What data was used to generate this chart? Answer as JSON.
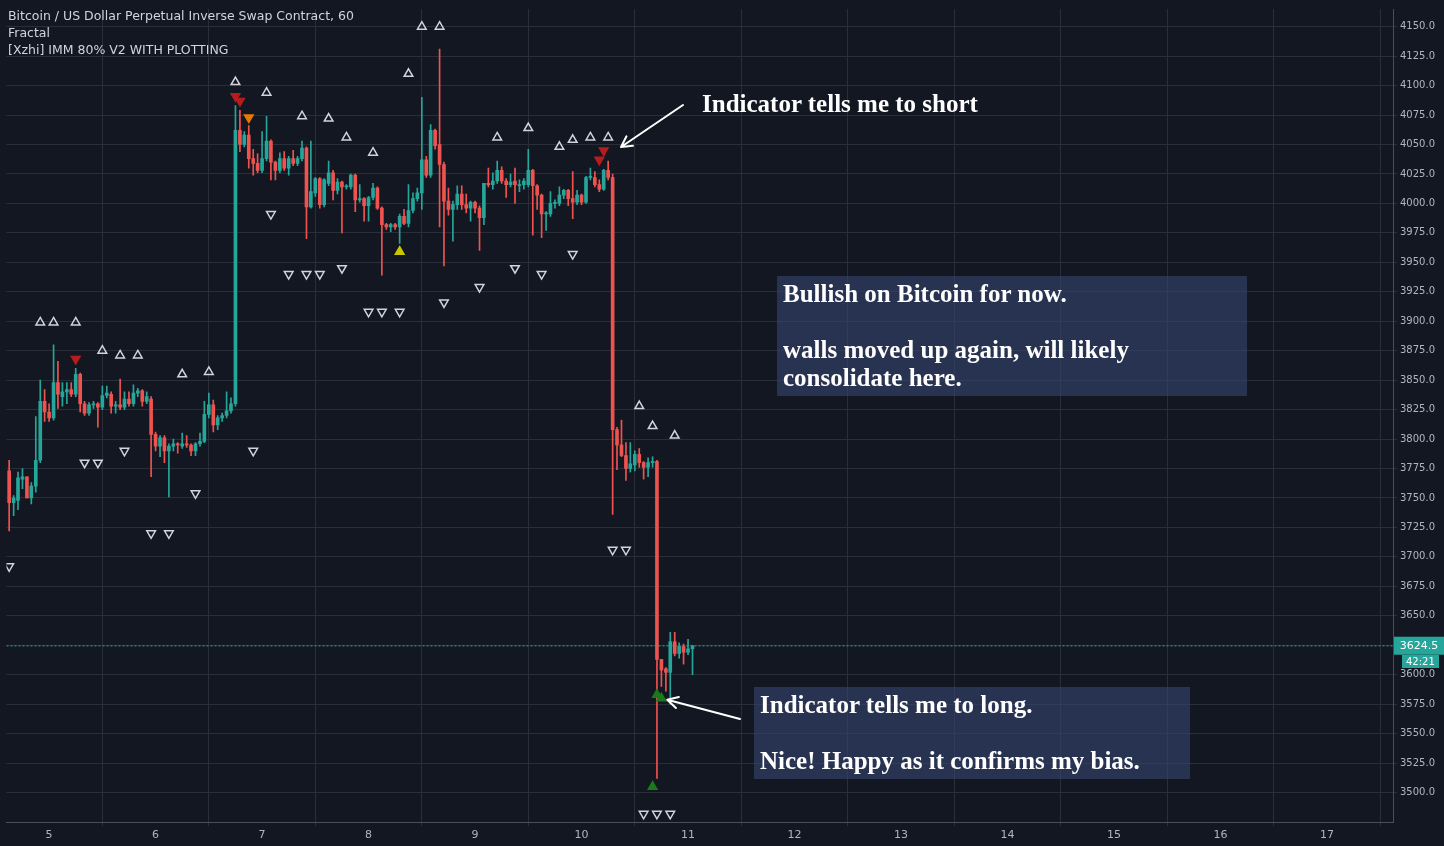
{
  "chart_data": {
    "type": "candlestick",
    "title": "Bitcoin / US Dollar Perpetual Inverse Swap Contract, 60",
    "annotations": [
      "Fractal",
      "[Xzhi] IMM 80% V2 WITH PLOTTING",
      "Indicator tells me to short",
      "Bullish on Bitcoin for now.",
      "walls moved up again, will likely consolidate here.",
      {
        "text": "Indicator tells me to long.",
        "x": 10.75,
        "y": 3580
      },
      "Nice! Happy as it confirms my bias.",
      "42:21"
    ],
    "x": [
      4.625,
      4.667,
      4.708,
      4.75,
      4.792,
      4.833,
      4.875,
      4.917,
      4.958,
      5,
      5.042,
      5.083,
      5.125,
      5.167,
      5.208,
      5.25,
      5.292,
      5.333,
      5.375,
      5.417,
      5.458,
      5.5,
      5.542,
      5.583,
      5.625,
      5.667,
      5.708,
      5.75,
      5.792,
      5.833,
      5.875,
      5.917,
      5.958,
      6,
      6.042,
      6.083,
      6.125,
      6.167,
      6.208,
      6.25,
      6.292,
      6.333,
      6.375,
      6.417,
      6.458,
      6.5,
      6.542,
      6.583,
      6.625,
      6.667,
      6.708,
      6.75,
      6.792,
      6.833,
      6.875,
      6.917,
      6.958,
      7,
      7.042,
      7.083,
      7.125,
      7.167,
      7.208,
      7.25,
      7.292,
      7.333,
      7.375,
      7.417,
      7.458,
      7.5,
      7.542,
      7.583,
      7.625,
      7.667,
      7.708,
      7.75,
      7.792,
      7.833,
      7.875,
      7.917,
      7.958,
      8,
      8.042,
      8.083,
      8.125,
      8.167,
      8.208,
      8.25,
      8.292,
      8.333,
      8.375,
      8.417,
      8.458,
      8.5,
      8.542,
      8.583,
      8.625,
      8.667,
      8.708,
      8.75,
      8.792,
      8.833,
      8.875,
      8.917,
      8.958,
      9,
      9.042,
      9.083,
      9.125,
      9.167,
      9.208,
      9.25,
      9.292,
      9.333,
      9.375,
      9.417,
      9.458,
      9.5,
      9.542,
      9.583,
      9.625,
      9.667,
      9.708,
      9.75,
      9.792,
      9.833,
      9.875,
      9.917,
      9.958,
      10,
      10.042,
      10.083,
      10.125,
      10.167,
      10.208,
      10.25,
      10.292,
      10.333,
      10.375,
      10.417,
      10.458,
      10.5,
      10.542,
      10.583,
      10.625,
      10.667,
      10.708,
      10.75,
      10.792,
      10.833,
      10.875,
      10.917,
      10.958,
      11,
      11.042
    ],
    "ohlc": [
      [
        3773,
        3782,
        3722,
        3746
      ],
      [
        3746,
        3752,
        3735,
        3750
      ],
      [
        3748,
        3772,
        3740,
        3767
      ],
      [
        3766,
        3775,
        3758,
        3768
      ],
      [
        3768,
        3768,
        3750,
        3750
      ],
      [
        3750,
        3763,
        3745,
        3760
      ],
      [
        3760,
        3819,
        3755,
        3782
      ],
      [
        3782,
        3850,
        3780,
        3832
      ],
      [
        3832,
        3842,
        3815,
        3823
      ],
      [
        3823,
        3830,
        3815,
        3818
      ],
      [
        3818,
        3880,
        3816,
        3848
      ],
      [
        3848,
        3866,
        3826,
        3838
      ],
      [
        3836,
        3848,
        3828,
        3840
      ],
      [
        3840,
        3848,
        3830,
        3842
      ],
      [
        3842,
        3848,
        3836,
        3838
      ],
      [
        3838,
        3860,
        3836,
        3855
      ],
      [
        3855,
        3856,
        3823,
        3830
      ],
      [
        3830,
        3832,
        3820,
        3822
      ],
      [
        3822,
        3831,
        3820,
        3829
      ],
      [
        3829,
        3832,
        3826,
        3830
      ],
      [
        3830,
        3831,
        3810,
        3827
      ],
      [
        3827,
        3845,
        3825,
        3837
      ],
      [
        3837,
        3845,
        3835,
        3839
      ],
      [
        3838,
        3840,
        3822,
        3828
      ],
      [
        3828,
        3832,
        3822,
        3829
      ],
      [
        3829,
        3851,
        3825,
        3827
      ],
      [
        3827,
        3840,
        3825,
        3834
      ],
      [
        3834,
        3840,
        3828,
        3830
      ],
      [
        3830,
        3846,
        3828,
        3839
      ],
      [
        3839,
        3843,
        3836,
        3841
      ],
      [
        3841,
        3842,
        3828,
        3832
      ],
      [
        3832,
        3840,
        3830,
        3836
      ],
      [
        3834,
        3836,
        3768,
        3804
      ],
      [
        3804,
        3806,
        3790,
        3794
      ],
      [
        3794,
        3803,
        3785,
        3801
      ],
      [
        3801,
        3803,
        3780,
        3790
      ],
      [
        3790,
        3796,
        3751,
        3794
      ],
      [
        3794,
        3800,
        3790,
        3796
      ],
      [
        3796,
        3797,
        3788,
        3795
      ],
      [
        3794,
        3805,
        3792,
        3796
      ],
      [
        3796,
        3803,
        3793,
        3795
      ],
      [
        3795,
        3796,
        3786,
        3790
      ],
      [
        3790,
        3797,
        3786,
        3796
      ],
      [
        3796,
        3805,
        3794,
        3798
      ],
      [
        3798,
        3832,
        3797,
        3821
      ],
      [
        3821,
        3839,
        3818,
        3829
      ],
      [
        3829,
        3833,
        3806,
        3812
      ],
      [
        3812,
        3820,
        3808,
        3818
      ],
      [
        3818,
        3822,
        3815,
        3820
      ],
      [
        3820,
        3840,
        3818,
        3824
      ],
      [
        3824,
        3835,
        3822,
        3830
      ],
      [
        3830,
        4083,
        3828,
        4062
      ],
      [
        4062,
        4079,
        4044,
        4050
      ],
      [
        4050,
        4061,
        4048,
        4058
      ],
      [
        4058,
        4066,
        4030,
        4038
      ],
      [
        4038,
        4046,
        4024,
        4034
      ],
      [
        4034,
        4042,
        4026,
        4028
      ],
      [
        4028,
        4061,
        4026,
        4038
      ],
      [
        4038,
        4074,
        4036,
        4053
      ],
      [
        4053,
        4054,
        4020,
        4035
      ],
      [
        4035,
        4036,
        4020,
        4028
      ],
      [
        4028,
        4043,
        4026,
        4038
      ],
      [
        4038,
        4044,
        4028,
        4030
      ],
      [
        4030,
        4040,
        4024,
        4038
      ],
      [
        4038,
        4045,
        4032,
        4034
      ],
      [
        4034,
        4040,
        4032,
        4038
      ],
      [
        4038,
        4053,
        4036,
        4047
      ],
      [
        4047,
        4048,
        3970,
        3997
      ],
      [
        3997,
        4053,
        3996,
        4010
      ],
      [
        4009,
        4022,
        4006,
        4021
      ],
      [
        4021,
        4022,
        3996,
        3999
      ],
      [
        3999,
        4021,
        3997,
        4020
      ],
      [
        4017,
        4036,
        4015,
        4026
      ],
      [
        4026,
        4028,
        4003,
        4011
      ],
      [
        4011,
        4021,
        4008,
        4018
      ],
      [
        4018,
        4019,
        3975,
        4014
      ],
      [
        4014,
        4016,
        4012,
        4015
      ],
      [
        4014,
        4025,
        4012,
        4024
      ],
      [
        4024,
        4025,
        3993,
        4003
      ],
      [
        4003,
        4016,
        4001,
        4004
      ],
      [
        4004,
        4005,
        3985,
        3998
      ],
      [
        3998,
        4006,
        3985,
        4005
      ],
      [
        4005,
        4017,
        4003,
        4013
      ],
      [
        4013,
        4014,
        3995,
        3996
      ],
      [
        3996,
        3997,
        3939,
        3982
      ],
      [
        3982,
        3983,
        3978,
        3980
      ],
      [
        3980,
        3983,
        3976,
        3982
      ],
      [
        3982,
        3983,
        3978,
        3980
      ],
      [
        3980,
        3991,
        3966,
        3989
      ],
      [
        3989,
        3995,
        3982,
        3983
      ],
      [
        3983,
        4016,
        3980,
        3994
      ],
      [
        3994,
        4009,
        3992,
        4004
      ],
      [
        4004,
        4013,
        4002,
        4009
      ],
      [
        4009,
        4090,
        3995,
        4037
      ],
      [
        4037,
        4040,
        4022,
        4024
      ],
      [
        4024,
        4067,
        4022,
        4062
      ],
      [
        4062,
        4063,
        4046,
        4049
      ],
      [
        4050,
        4131,
        3980,
        4033
      ],
      [
        4033,
        4035,
        3947,
        4002
      ],
      [
        4002,
        4013,
        3990,
        3995
      ],
      [
        3995,
        4002,
        3968,
        3999
      ],
      [
        3999,
        4015,
        3995,
        4008
      ],
      [
        4008,
        4015,
        3995,
        3999
      ],
      [
        3999,
        4008,
        3992,
        3996
      ],
      [
        3996,
        4002,
        3985,
        4001
      ],
      [
        4001,
        4002,
        3992,
        3996
      ],
      [
        3996,
        3998,
        3960,
        3988
      ],
      [
        3988,
        4017,
        3982,
        4017
      ],
      [
        4017,
        4030,
        4014,
        4016
      ],
      [
        4016,
        4026,
        4012,
        4019
      ],
      [
        4019,
        4036,
        4017,
        4028
      ],
      [
        4028,
        4031,
        4017,
        4019
      ],
      [
        4019,
        4021,
        4005,
        4016
      ],
      [
        4016,
        4025,
        4014,
        4018
      ],
      [
        4019,
        4030,
        4000,
        4016
      ],
      [
        4015,
        4020,
        4010,
        4016
      ],
      [
        4016,
        4021,
        4012,
        4019
      ],
      [
        4016,
        4046,
        4014,
        4028
      ],
      [
        4028,
        4029,
        3973,
        4015
      ],
      [
        4015,
        4016,
        3995,
        4007
      ],
      [
        4007,
        4008,
        3971,
        3991
      ],
      [
        3991,
        3993,
        3977,
        3992
      ],
      [
        3991,
        4010,
        3989,
        4000
      ],
      [
        4000,
        4003,
        3996,
        4001
      ],
      [
        4000,
        4014,
        3998,
        4007
      ],
      [
        4007,
        4012,
        4004,
        4011
      ],
      [
        4011,
        4012,
        3998,
        4004
      ],
      [
        4004,
        4027,
        3987,
        4001
      ],
      [
        4001,
        4011,
        3999,
        4007
      ],
      [
        4007,
        4008,
        3999,
        4001
      ],
      [
        4001,
        4023,
        4000,
        4022
      ],
      [
        4022,
        4030,
        4020,
        4023
      ],
      [
        4022,
        4027,
        4014,
        4016
      ],
      [
        4016,
        4020,
        4010,
        4012
      ],
      [
        4012,
        4029,
        4011,
        4028
      ],
      [
        4028,
        4036,
        4020,
        4022
      ],
      [
        4022,
        4025,
        3736,
        3808
      ],
      [
        3808,
        3810,
        3774,
        3795
      ],
      [
        3795,
        3816,
        3785,
        3786
      ],
      [
        3786,
        3797,
        3765,
        3775
      ],
      [
        3775,
        3797,
        3772,
        3779
      ],
      [
        3778,
        3790,
        3773,
        3787
      ],
      [
        3787,
        3792,
        3776,
        3780
      ],
      [
        3780,
        3781,
        3766,
        3776
      ],
      [
        3776,
        3784,
        3768,
        3780
      ],
      [
        3780,
        3785,
        3776,
        3781
      ],
      [
        3781,
        3782,
        3512,
        3613
      ],
      [
        3613,
        3613,
        3590,
        3604
      ],
      [
        3605,
        3606,
        3586,
        3602
      ],
      [
        3602,
        3636,
        3575,
        3628
      ],
      [
        3628,
        3636,
        3616,
        3618
      ],
      [
        3618,
        3627,
        3614,
        3624
      ],
      [
        3624,
        3626,
        3609,
        3619
      ],
      [
        3619,
        3630,
        3617,
        3622
      ],
      [
        3622,
        3625,
        3600,
        3624.5
      ]
    ],
    "colors": [
      "#ef5350",
      "#26a69a",
      "#26a69a",
      "#26a69a",
      "#ef5350",
      "#26a69a",
      "#26a69a",
      "#26a69a",
      "#ef5350",
      "#ef5350",
      "#26a69a",
      "#ef5350",
      "#26a69a",
      "#26a69a",
      "#ef5350",
      "#26a69a",
      "#ef5350",
      "#ef5350",
      "#26a69a",
      "#26a69a",
      "#ef5350",
      "#26a69a",
      "#26a69a",
      "#ef5350",
      "#26a69a",
      "#ef5350",
      "#26a69a",
      "#ef5350",
      "#26a69a",
      "#26a69a",
      "#ef5350",
      "#26a69a",
      "#ef5350",
      "#ef5350",
      "#26a69a",
      "#ef5350",
      "#26a69a",
      "#26a69a",
      "#ef5350",
      "#26a69a",
      "#ef5350",
      "#ef5350",
      "#26a69a",
      "#26a69a",
      "#26a69a",
      "#26a69a",
      "#ef5350",
      "#26a69a",
      "#26a69a",
      "#26a69a",
      "#26a69a",
      "#26a69a",
      "#ef5350",
      "#26a69a",
      "#ef5350",
      "#ef5350",
      "#ef5350",
      "#26a69a",
      "#26a69a",
      "#ef5350",
      "#ef5350",
      "#26a69a",
      "#ef5350",
      "#26a69a",
      "#ef5350",
      "#26a69a",
      "#26a69a",
      "#ef5350",
      "#26a69a",
      "#26a69a",
      "#ef5350",
      "#26a69a",
      "#26a69a",
      "#ef5350",
      "#26a69a",
      "#ef5350",
      "#26a69a",
      "#26a69a",
      "#ef5350",
      "#26a69a",
      "#ef5350",
      "#26a69a",
      "#26a69a",
      "#ef5350",
      "#ef5350",
      "#ef5350",
      "#26a69a",
      "#ef5350",
      "#26a69a",
      "#ef5350",
      "#26a69a",
      "#26a69a",
      "#26a69a",
      "#26a69a",
      "#ef5350",
      "#26a69a",
      "#ef5350",
      "#ef5350",
      "#ef5350",
      "#ef5350",
      "#26a69a",
      "#26a69a",
      "#ef5350",
      "#ef5350",
      "#26a69a",
      "#ef5350",
      "#ef5350",
      "#26a69a",
      "#ef5350",
      "#26a69a",
      "#26a69a",
      "#ef5350",
      "#ef5350",
      "#26a69a",
      "#ef5350",
      "#26a69a",
      "#26a69a",
      "#26a69a",
      "#ef5350",
      "#ef5350",
      "#ef5350",
      "#26a69a",
      "#26a69a",
      "#26a69a",
      "#26a69a",
      "#26a69a",
      "#ef5350",
      "#ef5350",
      "#26a69a",
      "#ef5350",
      "#26a69a",
      "#26a69a",
      "#ef5350",
      "#ef5350",
      "#26a69a",
      "#ef5350",
      "#ef5350",
      "#ef5350",
      "#ef5350",
      "#ef5350",
      "#26a69a",
      "#26a69a",
      "#ef5350",
      "#ef5350",
      "#26a69a",
      "#26a69a",
      "#ef5350",
      "#ef5350",
      "#ef5350",
      "#26a69a",
      "#ef5350",
      "#26a69a",
      "#ef5350",
      "#26a69a",
      "#26a69a"
    ],
    "series": [
      {
        "type": "scatter",
        "marker": "triangle",
        "color": "#d1d4dc",
        "x": [
          4.917,
          5.042,
          5.25,
          5.5,
          5.667,
          5.833,
          6.25,
          6.5,
          6.75,
          7.042,
          7.375,
          7.625,
          7.792,
          8.042,
          8.375,
          8.5,
          8.667,
          9.208,
          9.5,
          9.792,
          9.917,
          10.083,
          10.25,
          10.542,
          10.667,
          10.875
        ],
        "values": [
          3899,
          3899,
          3899,
          3875,
          3871,
          3871,
          3855,
          3857,
          4103,
          4094,
          4074,
          4072,
          4056,
          4043,
          4110,
          4150,
          4150,
          4056,
          4064,
          4048,
          4054,
          4056,
          4056,
          3828,
          3811,
          3803
        ]
      },
      {
        "type": "scatter",
        "marker": "triangle-down",
        "color": "#d1d4dc",
        "x": [
          4.625,
          5.333,
          5.458,
          5.708,
          5.958,
          6.125,
          6.375,
          6.917,
          7.083,
          7.25,
          7.417,
          7.542,
          7.75,
          8,
          8.125,
          8.292,
          8.708,
          9.042,
          9.375,
          9.625,
          9.917,
          10.292,
          10.417,
          10.583,
          10.708,
          10.833
        ],
        "values": [
          3692,
          3780,
          3780,
          3790,
          3720,
          3720,
          3754,
          3790,
          3991,
          3940,
          3940,
          3940,
          3945,
          3908,
          3908,
          3908,
          3916,
          3929,
          3945,
          3940,
          3957,
          3706,
          3706,
          3482,
          3482,
          3482
        ]
      },
      {
        "type": "scatter",
        "marker": "triangle-down",
        "color": "#b71c1c",
        "x": [
          5.25,
          6.75,
          6.792,
          10.167,
          10.208
        ],
        "values": [
          3868,
          4091,
          4087,
          4037,
          4045
        ]
      },
      {
        "type": "scatter",
        "marker": "triangle-down",
        "color": "#e67a00",
        "x": [
          6.875
        ],
        "values": [
          4073
        ]
      },
      {
        "type": "scatter",
        "marker": "triangle",
        "color": "#c8c800",
        "x": [
          8.292
        ],
        "values": [
          3959
        ]
      },
      {
        "type": "scatter",
        "marker": "triangle",
        "color": "#1b7a1b",
        "x": [
          10.667,
          10.708,
          10.75
        ],
        "values": [
          3505,
          3583,
          3580
        ]
      }
    ],
    "xlim": [
      4.6,
      17.62
    ],
    "xticks": [
      5,
      6,
      7,
      8,
      9,
      10,
      11,
      12,
      13,
      14,
      15,
      16,
      17
    ],
    "ylim": [
      3475,
      4165
    ],
    "yticks": [
      {
        "value": 3500,
        "label": "3500.0"
      },
      {
        "value": 3525,
        "label": "3525.0"
      },
      {
        "value": 3550,
        "label": "3550.0"
      },
      {
        "value": 3575,
        "label": "3575.0"
      },
      {
        "value": 3600,
        "label": "3600.0"
      },
      {
        "value": 3625,
        "label": null
      },
      {
        "value": 3650,
        "label": "3650.0"
      },
      {
        "value": 3675,
        "label": "3675.0"
      },
      {
        "value": 3700,
        "label": "3700.0"
      },
      {
        "value": 3725,
        "label": "3725.0"
      },
      {
        "value": 3750,
        "label": "3750.0"
      },
      {
        "value": 3775,
        "label": "3775.0"
      },
      {
        "value": 3800,
        "label": "3800.0"
      },
      {
        "value": 3825,
        "label": "3825.0"
      },
      {
        "value": 3850,
        "label": "3850.0"
      },
      {
        "value": 3875,
        "label": "3875.0"
      },
      {
        "value": 3900,
        "label": "3900.0"
      },
      {
        "value": 3925,
        "label": "3925.0"
      },
      {
        "value": 3950,
        "label": "3950.0"
      },
      {
        "value": 3975,
        "label": "3975.0"
      },
      {
        "value": 4000,
        "label": "4000.0"
      },
      {
        "value": 4025,
        "label": "4025.0"
      },
      {
        "value": 4050,
        "label": "4050.0"
      },
      {
        "value": 4075,
        "label": "4075.0"
      },
      {
        "value": 4100,
        "label": "4100.0"
      },
      {
        "value": 4125,
        "label": "4125.0"
      },
      {
        "value": 4150,
        "label": "4150.0"
      }
    ],
    "ref_lines": [
      {
        "axis": "y",
        "value": 3624.5,
        "label": "3624.5",
        "color": "#26a69a",
        "line_style": "dotted"
      }
    ],
    "grid": true,
    "legend": false
  }
}
